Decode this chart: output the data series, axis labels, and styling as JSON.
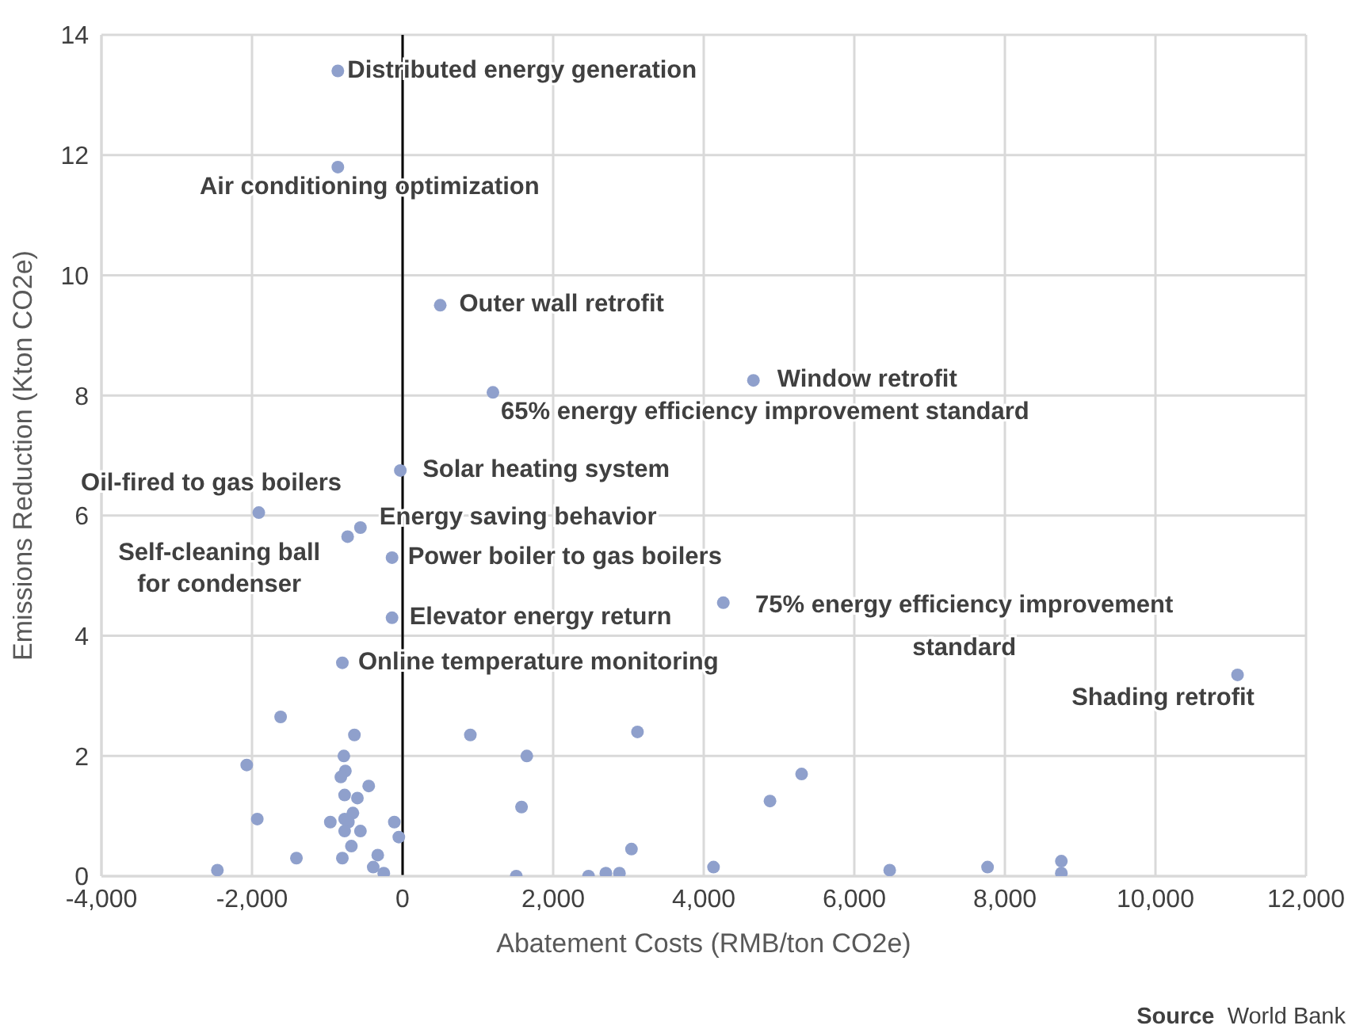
{
  "chart_data": {
    "type": "scatter",
    "xlabel": "Abatement Costs (RMB/ton CO2e)",
    "ylabel": "Emissions Reduction (Kton CO2e)",
    "x": [
      -860,
      -860,
      500,
      1200,
      4660,
      -30,
      -1910,
      -560,
      -730,
      -140,
      -140,
      4260,
      -800,
      11090,
      -1620,
      -640,
      -780,
      -760,
      -820,
      -2070,
      -450,
      -770,
      -600,
      -960,
      -770,
      -660,
      -720,
      -1930,
      -110,
      -50,
      -770,
      -560,
      -680,
      -1410,
      -800,
      -330,
      -390,
      -250,
      -2460,
      900,
      1650,
      1580,
      3120,
      3040,
      1510,
      2470,
      2700,
      2880,
      4130,
      4880,
      5300,
      6470,
      7770,
      8750,
      8750
    ],
    "series": [
      {
        "color": "#8fa0cc",
        "values": [
          13.4,
          11.8,
          9.5,
          8.05,
          8.25,
          6.75,
          6.05,
          5.8,
          5.65,
          5.3,
          4.3,
          4.55,
          3.55,
          3.35,
          2.65,
          2.35,
          2,
          1.75,
          1.65,
          1.85,
          1.5,
          1.35,
          1.3,
          0.9,
          0.95,
          1.05,
          0.9,
          0.95,
          0.9,
          0.65,
          0.75,
          0.75,
          0.5,
          0.3,
          0.3,
          0.35,
          0.15,
          0.05,
          0.1,
          2.35,
          2,
          1.15,
          2.4,
          0.45,
          0,
          0,
          0.05,
          0.05,
          0.15,
          1.25,
          1.7,
          0.1,
          0.15,
          0.25,
          0.05
        ]
      }
    ],
    "xlim": [
      -4000,
      12000
    ],
    "xticks": [
      {
        "value": -4000,
        "label": "-4,000"
      },
      {
        "value": -2000,
        "label": "-2,000"
      },
      0,
      {
        "value": 2000,
        "label": "2,000"
      },
      {
        "value": 4000,
        "label": "4,000"
      },
      {
        "value": 6000,
        "label": "6,000"
      },
      {
        "value": 8000,
        "label": "8,000"
      },
      {
        "value": 10000,
        "label": "10,000"
      },
      {
        "value": 12000,
        "label": "12,000"
      }
    ],
    "ylim": [
      0,
      14
    ],
    "yticks": [
      0,
      2,
      4,
      6,
      8,
      10,
      12,
      14
    ],
    "grid": true,
    "marker": "circle",
    "ref_lines": [
      {
        "axis": "x",
        "value": 0,
        "color": "#000000"
      }
    ],
    "annotations": [
      {
        "text": "Distributed energy generation",
        "x": -860,
        "y": 13.4
      },
      {
        "text": "Air conditioning optimization",
        "x": -860,
        "y": 11.8
      },
      {
        "text": "Outer wall retrofit",
        "x": 500,
        "y": 9.5
      },
      {
        "text": "65% energy efficiency improvement standard",
        "x": 1200,
        "y": 8.05
      },
      {
        "text": "Window retrofit",
        "x": 4660,
        "y": 8.25
      },
      {
        "text": "Solar heating system",
        "x": -30,
        "y": 6.75
      },
      {
        "text": "Oil-fired to gas boilers",
        "x": -1910,
        "y": 6.05
      },
      {
        "text": "Energy saving behavior",
        "x": -560,
        "y": 5.8
      },
      {
        "text": "Self-cleaning ball for condenser",
        "x": -730,
        "y": 5.65
      },
      {
        "text": "Power boiler to gas boilers",
        "x": -140,
        "y": 5.3
      },
      {
        "text": "Elevator energy return",
        "x": -140,
        "y": 4.3
      },
      {
        "text": "75% energy efficiency improvement standard",
        "x": 4260,
        "y": 4.55
      },
      {
        "text": "Online temperature monitoring",
        "x": -800,
        "y": 3.55
      },
      {
        "text": "Shading retrofit",
        "x": 11090,
        "y": 3.35
      },
      "Source World Bank"
    ]
  }
}
